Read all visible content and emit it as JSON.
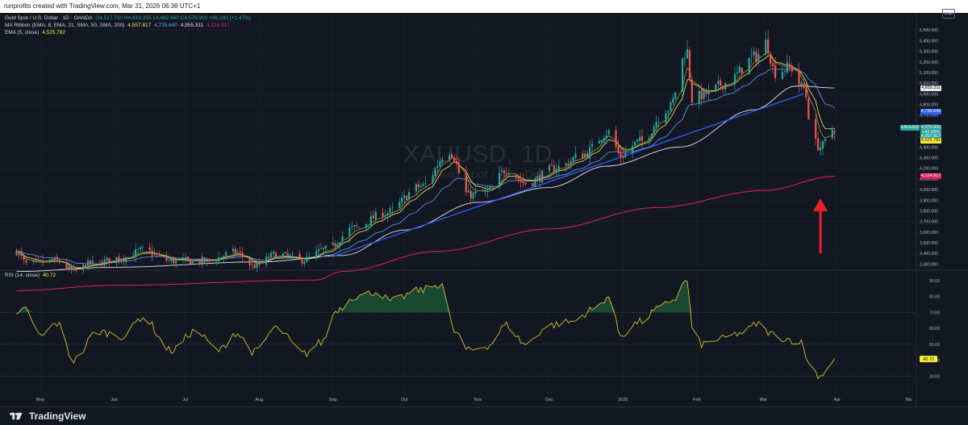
{
  "page": {
    "header_text": "runprofits created with TradingView.com, Mar 31, 2026 06:36 UTC+1",
    "brand": "TradingView"
  },
  "legend": {
    "symbol_line": "Gold Spot / U.S. Dollar · 1D · OANDA",
    "ohlc": "O4,517.730 H4,619.255 L4,482.660 C4,576.900 +66.290 (+1.47%)",
    "ma_name": "MA Ribbon (EMA, 8, EMA, 21, SMA, 50, SMA, 200)",
    "ma_values": [
      "4,557.817",
      "4,735.640",
      "4,955.311",
      "4,124.917"
    ],
    "ema_name": "EMA (5, close)",
    "ema_value": "4,525.782",
    "rsi_name": "RSI (14, close)",
    "rsi_value": "40.72"
  },
  "watermark": {
    "title": "XAUUSD, 1D",
    "subtitle": "Gold Spot / U.S. Dollar"
  },
  "price_scale_currency": "USD",
  "price_tags": [
    {
      "label": "4,955.311",
      "price": 4955.311,
      "bg": "#e8e8e8",
      "fg": "#131722"
    },
    {
      "label": "4,735.640",
      "price": 4735.64,
      "bg": "#2962ff",
      "fg": "#ffffff"
    },
    {
      "label": "XAUUSD",
      "price": 4576.9,
      "bg": "#26a69a",
      "fg": "#ffffff",
      "side": "left"
    },
    {
      "label": "4,576.900",
      "price": 4576.9,
      "bg": "#26a69a",
      "fg": "#ffffff"
    },
    {
      "label": "+42.09%",
      "price": 4538,
      "bg": "#26a69a",
      "fg": "#ffffff"
    },
    {
      "label": "4,557.817",
      "price": 4499,
      "bg": "#26a69a",
      "fg": "#ffffff"
    },
    {
      "label": "4,525.782",
      "price": 4460,
      "bg": "#f5ea3a",
      "fg": "#131722"
    },
    {
      "label": "4,124.917",
      "price": 4124.917,
      "bg": "#e0245e",
      "fg": "#ffffff"
    }
  ],
  "colors": {
    "up": "#26a69a",
    "down": "#ef5350",
    "ema8": "#f2e96b",
    "ema21": "#5fa3ff",
    "sma50": "#2962ff",
    "sma200": "#e0245e",
    "ema5": "#f5ea3a",
    "rsi": "#cfc12d",
    "arrow": "#e8202a"
  },
  "chart_data": [
    {
      "type": "candlestick",
      "title": "XAUUSD, 1D",
      "subtitle": "Gold Spot / U.S. Dollar",
      "ylim": [
        3250,
        5600
      ],
      "y_ticks": [
        3300,
        3400,
        3500,
        3600,
        3700,
        3800,
        3900,
        4000,
        4100,
        4200,
        4300,
        4400,
        4500,
        4600,
        4700,
        4800,
        4900,
        5000,
        5100,
        5200,
        5300,
        5400,
        5500
      ],
      "x_ticks": [
        "May",
        "Jun",
        "Jul",
        "Aug",
        "Sep",
        "Oct",
        "Nov",
        "Dec",
        "2026",
        "Feb",
        "Mar",
        "Apr",
        "Ma"
      ],
      "anchors": {
        "close": [
          [
            "2025-04-21",
            3420
          ],
          [
            "2025-04-25",
            3300
          ],
          [
            "2025-05-08",
            3330
          ],
          [
            "2025-05-15",
            3230
          ],
          [
            "2025-05-22",
            3300
          ],
          [
            "2025-06-05",
            3360
          ],
          [
            "2025-06-13",
            3430
          ],
          [
            "2025-06-25",
            3330
          ],
          [
            "2025-07-10",
            3330
          ],
          [
            "2025-07-22",
            3410
          ],
          [
            "2025-07-30",
            3280
          ],
          [
            "2025-08-08",
            3390
          ],
          [
            "2025-08-20",
            3340
          ],
          [
            "2025-08-29",
            3440
          ],
          [
            "2025-09-10",
            3640
          ],
          [
            "2025-09-23",
            3780
          ],
          [
            "2025-10-08",
            4030
          ],
          [
            "2025-10-20",
            4360
          ],
          [
            "2025-10-28",
            3950
          ],
          [
            "2025-11-05",
            3980
          ],
          [
            "2025-11-13",
            4190
          ],
          [
            "2025-11-21",
            4060
          ],
          [
            "2025-12-05",
            4210
          ],
          [
            "2025-12-15",
            4330
          ],
          [
            "2025-12-26",
            4540
          ],
          [
            "2025-12-31",
            4320
          ],
          [
            "2026-01-08",
            4450
          ],
          [
            "2026-01-20",
            4760
          ],
          [
            "2026-01-28",
            5300
          ],
          [
            "2026-01-30",
            4850
          ],
          [
            "2026-02-05",
            4900
          ],
          [
            "2026-02-13",
            5000
          ],
          [
            "2026-02-26",
            5250
          ],
          [
            "2026-03-02",
            5380
          ],
          [
            "2026-03-06",
            5100
          ],
          [
            "2026-03-12",
            5150
          ],
          [
            "2026-03-18",
            4950
          ],
          [
            "2026-03-22",
            4450
          ],
          [
            "2026-03-25",
            4400
          ],
          [
            "2026-03-31",
            4577
          ]
        ],
        "sma50": [
          [
            "2025-04-21",
            3230
          ],
          [
            "2025-06-01",
            3270
          ],
          [
            "2025-08-01",
            3320
          ],
          [
            "2025-09-05",
            3380
          ],
          [
            "2025-10-01",
            3620
          ],
          [
            "2025-11-01",
            3880
          ],
          [
            "2025-12-01",
            4020
          ],
          [
            "2025-12-25",
            4220
          ],
          [
            "2026-01-25",
            4400
          ],
          [
            "2026-02-25",
            4750
          ],
          [
            "2026-03-15",
            4975
          ],
          [
            "2026-03-31",
            4955
          ]
        ],
        "sma200": [
          [
            "2025-04-21",
            3050
          ],
          [
            "2025-06-01",
            3100
          ],
          [
            "2025-08-25",
            3150
          ],
          [
            "2025-09-05",
            3230
          ],
          [
            "2025-10-15",
            3420
          ],
          [
            "2025-12-01",
            3630
          ],
          [
            "2026-01-15",
            3830
          ],
          [
            "2026-03-01",
            3990
          ],
          [
            "2026-03-31",
            4125
          ]
        ]
      }
    },
    {
      "type": "line",
      "title": "RSI (14, close)",
      "ylim": [
        20,
        95
      ],
      "y_ticks": [
        30,
        40,
        50,
        60,
        70,
        80,
        90
      ],
      "bands": [
        30,
        50,
        70
      ],
      "last_value": 40.72,
      "anchors": [
        [
          "2025-04-21",
          68
        ],
        [
          "2025-04-25",
          72
        ],
        [
          "2025-05-01",
          55
        ],
        [
          "2025-05-08",
          63
        ],
        [
          "2025-05-15",
          40
        ],
        [
          "2025-05-25",
          58
        ],
        [
          "2025-06-05",
          55
        ],
        [
          "2025-06-13",
          67
        ],
        [
          "2025-06-25",
          46
        ],
        [
          "2025-07-05",
          58
        ],
        [
          "2025-07-15",
          46
        ],
        [
          "2025-07-22",
          57
        ],
        [
          "2025-07-30",
          45
        ],
        [
          "2025-08-08",
          60
        ],
        [
          "2025-08-20",
          44
        ],
        [
          "2025-08-27",
          51
        ],
        [
          "2025-09-03",
          72
        ],
        [
          "2025-09-10",
          80
        ],
        [
          "2025-09-20",
          83
        ],
        [
          "2025-09-25",
          77
        ],
        [
          "2025-10-08",
          84
        ],
        [
          "2025-10-17",
          88
        ],
        [
          "2025-10-22",
          58
        ],
        [
          "2025-10-28",
          46
        ],
        [
          "2025-11-05",
          49
        ],
        [
          "2025-11-13",
          62
        ],
        [
          "2025-11-21",
          50
        ],
        [
          "2025-12-01",
          62
        ],
        [
          "2025-12-10",
          64
        ],
        [
          "2025-12-20",
          72
        ],
        [
          "2025-12-26",
          80
        ],
        [
          "2025-12-31",
          56
        ],
        [
          "2026-01-08",
          64
        ],
        [
          "2026-01-16",
          72
        ],
        [
          "2026-01-22",
          78
        ],
        [
          "2026-01-28",
          90
        ],
        [
          "2026-01-30",
          60
        ],
        [
          "2026-02-03",
          50
        ],
        [
          "2026-02-10",
          53
        ],
        [
          "2026-02-20",
          57
        ],
        [
          "2026-02-27",
          63
        ],
        [
          "2026-03-02",
          58
        ],
        [
          "2026-03-08",
          54
        ],
        [
          "2026-03-16",
          52
        ],
        [
          "2026-03-22",
          33
        ],
        [
          "2026-03-25",
          30
        ],
        [
          "2026-03-28",
          35
        ],
        [
          "2026-03-31",
          40.72
        ]
      ]
    }
  ]
}
